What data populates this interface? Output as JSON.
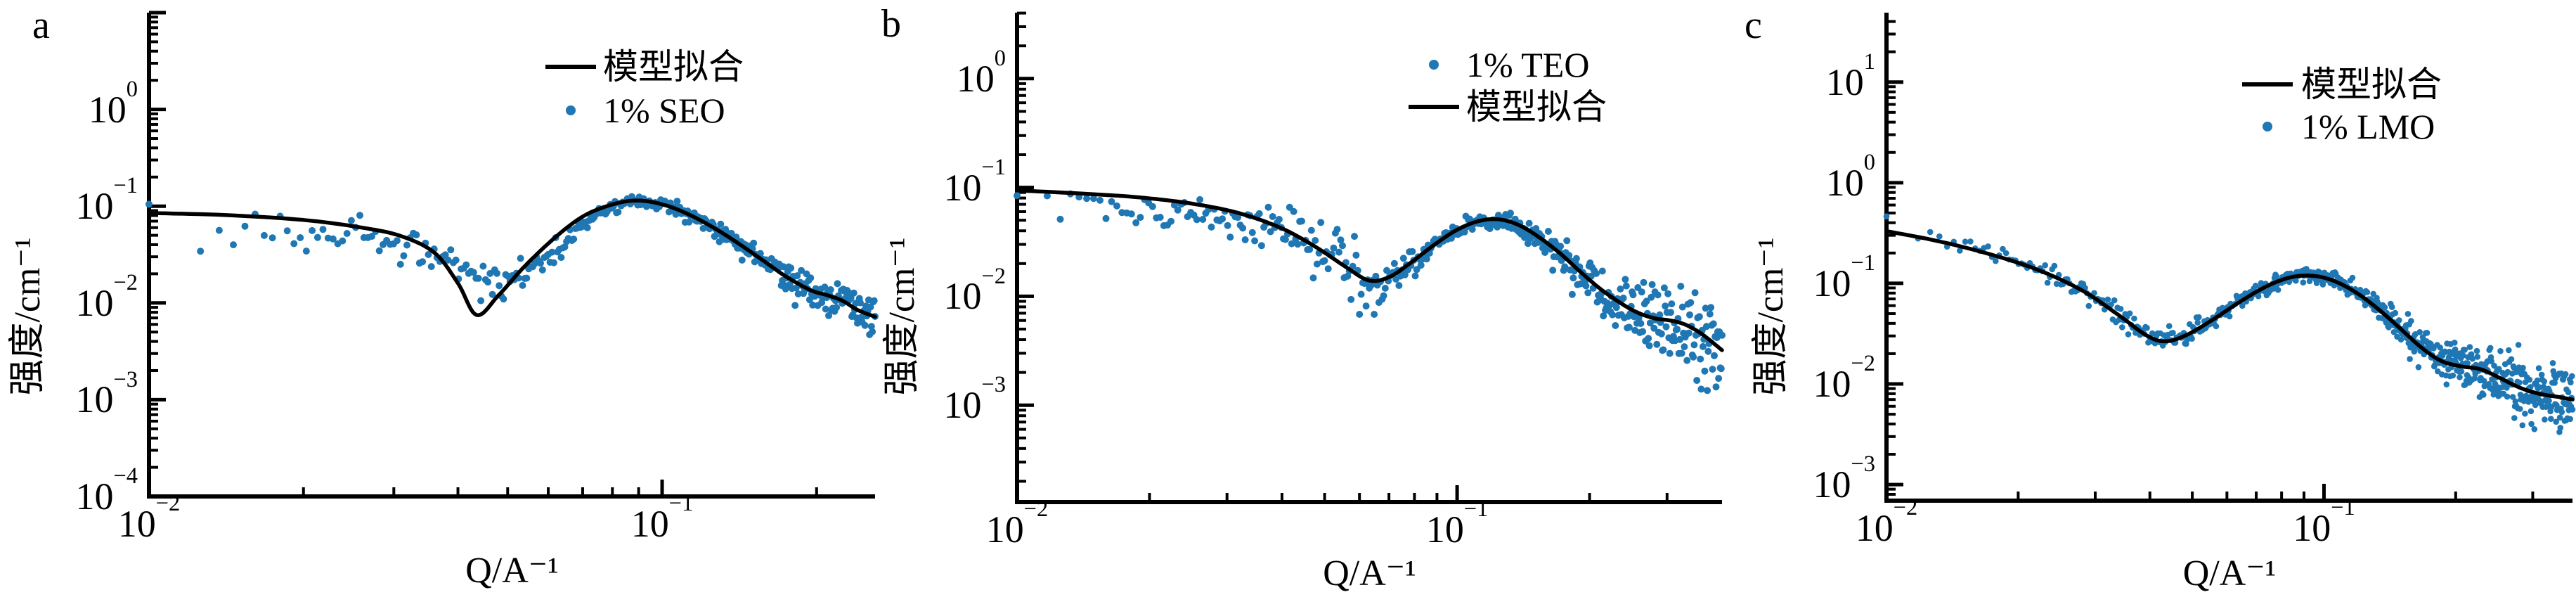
{
  "figure": {
    "background": "#ffffff",
    "text_color": "#000000"
  },
  "chart_data": [
    {
      "type": "scatter",
      "panel_label": "a",
      "xlabel": "Q/A⁻¹",
      "ylabel": "强度/cm⁻¹",
      "x_log_range": [
        -2,
        -0.585
      ],
      "y_log_range": [
        -4,
        1.0
      ],
      "x_tick_exponents": [
        -2,
        -1
      ],
      "y_tick_exponents": [
        0,
        -1,
        -2,
        -3,
        -4
      ],
      "grid": "off",
      "legend_position": "top-right-inside",
      "legend": [
        {
          "marker": "line",
          "label": "模型拟合",
          "color": "#000000"
        },
        {
          "marker": "dot",
          "label": "1% SEO",
          "color": "#1f77b4"
        }
      ],
      "series": [
        {
          "name": "模型拟合",
          "kind": "line",
          "color": "#000000",
          "anchors": [
            [
              0.01,
              0.085
            ],
            [
              0.014,
              0.081
            ],
            [
              0.02,
              0.072
            ],
            [
              0.026,
              0.06
            ],
            [
              0.031,
              0.049
            ],
            [
              0.036,
              0.033
            ],
            [
              0.04,
              0.016
            ],
            [
              0.0435,
              0.0075
            ],
            [
              0.048,
              0.012
            ],
            [
              0.054,
              0.024
            ],
            [
              0.062,
              0.048
            ],
            [
              0.07,
              0.078
            ],
            [
              0.078,
              0.1
            ],
            [
              0.086,
              0.113
            ],
            [
              0.094,
              0.112
            ],
            [
              0.104,
              0.098
            ],
            [
              0.115,
              0.078
            ],
            [
              0.128,
              0.057
            ],
            [
              0.142,
              0.04
            ],
            [
              0.158,
              0.027
            ],
            [
              0.175,
              0.0185
            ],
            [
              0.195,
              0.0135
            ],
            [
              0.21,
              0.012
            ],
            [
              0.225,
              0.0105
            ],
            [
              0.24,
              0.0085
            ],
            [
              0.26,
              0.0072
            ]
          ]
        },
        {
          "name": "1% SEO",
          "kind": "scatter",
          "color": "#1f77b4",
          "trend_anchors": [
            [
              0.01,
              0.092
            ],
            [
              0.012,
              0.062
            ],
            [
              0.015,
              0.057
            ],
            [
              0.019,
              0.054
            ],
            [
              0.024,
              0.049
            ],
            [
              0.029,
              0.045
            ],
            [
              0.034,
              0.037
            ],
            [
              0.039,
              0.025
            ],
            [
              0.044,
              0.017
            ],
            [
              0.049,
              0.0135
            ],
            [
              0.054,
              0.019
            ],
            [
              0.06,
              0.03
            ],
            [
              0.068,
              0.055
            ],
            [
              0.076,
              0.088
            ],
            [
              0.086,
              0.11
            ],
            [
              0.095,
              0.111
            ],
            [
              0.105,
              0.096
            ],
            [
              0.118,
              0.073
            ],
            [
              0.132,
              0.052
            ],
            [
              0.148,
              0.035
            ],
            [
              0.165,
              0.023
            ],
            [
              0.182,
              0.0155
            ],
            [
              0.2,
              0.0125
            ],
            [
              0.22,
              0.01
            ],
            [
              0.24,
              0.008
            ],
            [
              0.26,
              0.0068
            ]
          ],
          "noise": {
            "n": 360,
            "p": 0.45,
            "seed": 7,
            "sigma_anchors": [
              [
                -2,
                0.1
              ],
              [
                -1.7,
                0.1
              ],
              [
                -1.45,
                0.12
              ],
              [
                -1.32,
                0.09
              ],
              [
                -1.15,
                0.032
              ],
              [
                -1.0,
                0.032
              ],
              [
                -0.85,
                0.055
              ],
              [
                -0.7,
                0.09
              ],
              [
                -0.585,
                0.12
              ]
            ]
          }
        }
      ]
    },
    {
      "type": "scatter",
      "panel_label": "b",
      "xlabel": "Q/A⁻¹",
      "ylabel": "强度/cm⁻¹",
      "x_log_range": [
        -2,
        -0.398
      ],
      "y_log_range": [
        -3.89,
        0.606
      ],
      "x_tick_exponents": [
        -2,
        -1
      ],
      "y_tick_exponents": [
        0,
        -1,
        -2,
        -3
      ],
      "grid": "off",
      "legend_position": "top-right-inside",
      "legend": [
        {
          "marker": "dot",
          "label": "1% TEO",
          "color": "#1f77b4"
        },
        {
          "marker": "line",
          "label": "模型拟合",
          "color": "#000000"
        }
      ],
      "series": [
        {
          "name": "模型拟合",
          "kind": "line",
          "color": "#000000",
          "anchors": [
            [
              0.01,
              0.094
            ],
            [
              0.014,
              0.088
            ],
            [
              0.019,
              0.081
            ],
            [
              0.025,
              0.071
            ],
            [
              0.032,
              0.058
            ],
            [
              0.04,
              0.042
            ],
            [
              0.048,
              0.028
            ],
            [
              0.056,
              0.0185
            ],
            [
              0.063,
              0.014
            ],
            [
              0.07,
              0.015
            ],
            [
              0.078,
              0.02
            ],
            [
              0.088,
              0.029
            ],
            [
              0.098,
              0.039
            ],
            [
              0.108,
              0.047
            ],
            [
              0.118,
              0.051
            ],
            [
              0.128,
              0.05
            ],
            [
              0.14,
              0.044
            ],
            [
              0.155,
              0.034
            ],
            [
              0.172,
              0.0245
            ],
            [
              0.19,
              0.017
            ],
            [
              0.21,
              0.012
            ],
            [
              0.232,
              0.009
            ],
            [
              0.255,
              0.0072
            ],
            [
              0.28,
              0.0063
            ],
            [
              0.305,
              0.006
            ],
            [
              0.33,
              0.0055
            ],
            [
              0.36,
              0.0045
            ],
            [
              0.4,
              0.0032
            ]
          ]
        },
        {
          "name": "1% TEO",
          "kind": "scatter",
          "color": "#1f77b4",
          "trend_anchors": [
            [
              0.01,
              0.074
            ],
            [
              0.013,
              0.068
            ],
            [
              0.017,
              0.064
            ],
            [
              0.022,
              0.061
            ],
            [
              0.028,
              0.056
            ],
            [
              0.034,
              0.049
            ],
            [
              0.04,
              0.04
            ],
            [
              0.046,
              0.03
            ],
            [
              0.052,
              0.022
            ],
            [
              0.058,
              0.0155
            ],
            [
              0.064,
              0.0115
            ],
            [
              0.07,
              0.013
            ],
            [
              0.078,
              0.0185
            ],
            [
              0.088,
              0.028
            ],
            [
              0.098,
              0.038
            ],
            [
              0.108,
              0.046
            ],
            [
              0.118,
              0.0505
            ],
            [
              0.128,
              0.0495
            ],
            [
              0.14,
              0.0435
            ],
            [
              0.155,
              0.0335
            ],
            [
              0.172,
              0.024
            ],
            [
              0.19,
              0.0165
            ],
            [
              0.21,
              0.0115
            ],
            [
              0.232,
              0.0085
            ],
            [
              0.255,
              0.007
            ],
            [
              0.28,
              0.0062
            ],
            [
              0.305,
              0.0058
            ],
            [
              0.33,
              0.005
            ],
            [
              0.36,
              0.004
            ],
            [
              0.4,
              0.003
            ]
          ],
          "noise": {
            "n": 430,
            "p": 0.52,
            "seed": 1013,
            "sigma_anchors": [
              [
                -2,
                0.07
              ],
              [
                -1.55,
                0.08
              ],
              [
                -1.28,
                0.17
              ],
              [
                -1.18,
                0.1
              ],
              [
                -1.05,
                0.04
              ],
              [
                -0.92,
                0.04
              ],
              [
                -0.8,
                0.07
              ],
              [
                -0.65,
                0.12
              ],
              [
                -0.5,
                0.18
              ],
              [
                -0.398,
                0.23
              ]
            ]
          }
        }
      ]
    },
    {
      "type": "scatter",
      "panel_label": "c",
      "xlabel": "Q/A⁻¹",
      "ylabel": "强度/cm⁻¹",
      "x_log_range": [
        -2,
        -0.432
      ],
      "y_log_range": [
        -3.16,
        1.69
      ],
      "x_tick_exponents": [
        -2,
        -1
      ],
      "y_tick_exponents": [
        1,
        0,
        -1,
        -2,
        -3
      ],
      "grid": "off",
      "legend_position": "top-right-inside",
      "legend": [
        {
          "marker": "line",
          "label": "模型拟合",
          "color": "#000000"
        },
        {
          "marker": "dot",
          "label": "1% LMO",
          "color": "#1f77b4"
        }
      ],
      "series": [
        {
          "name": "模型拟合",
          "kind": "line",
          "color": "#000000",
          "anchors": [
            [
              0.01,
              0.33
            ],
            [
              0.013,
              0.265
            ],
            [
              0.017,
              0.198
            ],
            [
              0.022,
              0.138
            ],
            [
              0.028,
              0.085
            ],
            [
              0.034,
              0.048
            ],
            [
              0.039,
              0.031
            ],
            [
              0.043,
              0.0265
            ],
            [
              0.048,
              0.03
            ],
            [
              0.055,
              0.042
            ],
            [
              0.063,
              0.062
            ],
            [
              0.072,
              0.088
            ],
            [
              0.081,
              0.11
            ],
            [
              0.089,
              0.119
            ],
            [
              0.098,
              0.116
            ],
            [
              0.108,
              0.101
            ],
            [
              0.12,
              0.078
            ],
            [
              0.134,
              0.054
            ],
            [
              0.15,
              0.035
            ],
            [
              0.167,
              0.023
            ],
            [
              0.185,
              0.017
            ],
            [
              0.205,
              0.015
            ],
            [
              0.228,
              0.014
            ],
            [
              0.252,
              0.0115
            ],
            [
              0.28,
              0.0092
            ],
            [
              0.31,
              0.008
            ],
            [
              0.345,
              0.0074
            ],
            [
              0.37,
              0.007
            ]
          ]
        },
        {
          "name": "1% LMO",
          "kind": "scatter",
          "color": "#1f77b4",
          "trend_anchors": [
            [
              0.01,
              0.37
            ],
            [
              0.013,
              0.285
            ],
            [
              0.017,
              0.208
            ],
            [
              0.022,
              0.142
            ],
            [
              0.028,
              0.087
            ],
            [
              0.034,
              0.049
            ],
            [
              0.039,
              0.032
            ],
            [
              0.043,
              0.027
            ],
            [
              0.048,
              0.0305
            ],
            [
              0.055,
              0.0425
            ],
            [
              0.063,
              0.063
            ],
            [
              0.072,
              0.089
            ],
            [
              0.081,
              0.111
            ],
            [
              0.089,
              0.12
            ],
            [
              0.098,
              0.117
            ],
            [
              0.108,
              0.102
            ],
            [
              0.12,
              0.079
            ],
            [
              0.134,
              0.0545
            ],
            [
              0.15,
              0.0355
            ],
            [
              0.167,
              0.0235
            ],
            [
              0.185,
              0.0172
            ],
            [
              0.205,
              0.015
            ],
            [
              0.228,
              0.0138
            ],
            [
              0.252,
              0.0112
            ],
            [
              0.28,
              0.0088
            ],
            [
              0.31,
              0.0077
            ],
            [
              0.345,
              0.007
            ],
            [
              0.37,
              0.0062
            ]
          ],
          "noise": {
            "n": 700,
            "p": 0.47,
            "seed": 42,
            "sigma_anchors": [
              [
                -2,
                0.045
              ],
              [
                -1.6,
                0.05
              ],
              [
                -1.42,
                0.06
              ],
              [
                -1.25,
                0.04
              ],
              [
                -1.1,
                0.03
              ],
              [
                -0.95,
                0.045
              ],
              [
                -0.8,
                0.075
              ],
              [
                -0.65,
                0.11
              ],
              [
                -0.52,
                0.14
              ],
              [
                -0.432,
                0.17
              ]
            ]
          }
        }
      ]
    }
  ]
}
